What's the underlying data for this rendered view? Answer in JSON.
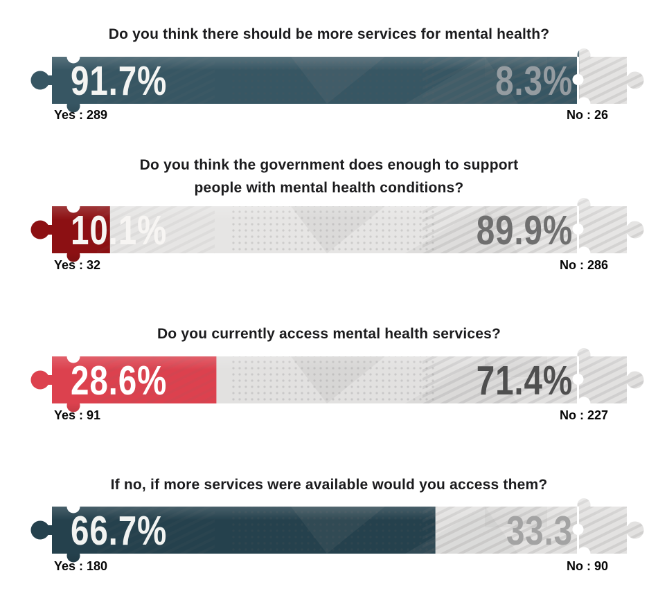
{
  "page": {
    "background": "#ffffff",
    "bar_background_gray": "#e4e3e2",
    "question_text_color": "#1b1b1d",
    "count_label_color": "#060606"
  },
  "chart_data": {
    "type": "bar",
    "subtype": "horizontal-puzzle-strip-survey",
    "orientation": "horizontal",
    "grid": false,
    "legend_position": "labels-below-bar-ends",
    "xlim_percent": [
      0,
      100
    ],
    "rows": [
      {
        "question": "Do you think there should be more services for mental health?",
        "yes": {
          "pct": 91.7,
          "count": 289,
          "label": "91.7%",
          "side_label": "Yes : 289",
          "color": "#375663",
          "text_color": "#f4f4f2"
        },
        "no": {
          "pct": 8.3,
          "count": 26,
          "label": "8.3%",
          "side_label": "No : 26",
          "color": "#e4e3e2",
          "text_color": "#959ca1"
        }
      },
      {
        "question": "Do you think the government does enough to support\npeople with mental health conditions?",
        "yes": {
          "pct": 10.1,
          "count": 32,
          "label": "10.1%",
          "side_label": "Yes : 32",
          "color": "#8c1013",
          "text_color": "#f7f5f3"
        },
        "no": {
          "pct": 89.9,
          "count": 286,
          "label": "89.9%",
          "side_label": "No : 286",
          "color": "#e6e5e4",
          "text_color": "#6f6f6f"
        }
      },
      {
        "question": "Do you currently access mental health services?",
        "yes": {
          "pct": 28.6,
          "count": 91,
          "label": "28.6%",
          "side_label": "Yes : 91",
          "color": "#dc414e",
          "text_color": "#ffffff"
        },
        "no": {
          "pct": 71.4,
          "count": 227,
          "label": "71.4%",
          "side_label": "No : 227",
          "color": "#e2e1e0",
          "text_color": "#4f4f4f"
        }
      },
      {
        "question": "If no, if more services were available would you access them?",
        "yes": {
          "pct": 66.7,
          "count": 180,
          "label": "66.7%",
          "side_label": "Yes : 180",
          "color": "#25414d",
          "text_color": "#f2f3f1"
        },
        "no": {
          "pct": 33.3,
          "count": 90,
          "label": "33.3",
          "side_label": "No : 90",
          "color": "#e3e2e1",
          "text_color": "#a3a3a3"
        }
      }
    ]
  }
}
